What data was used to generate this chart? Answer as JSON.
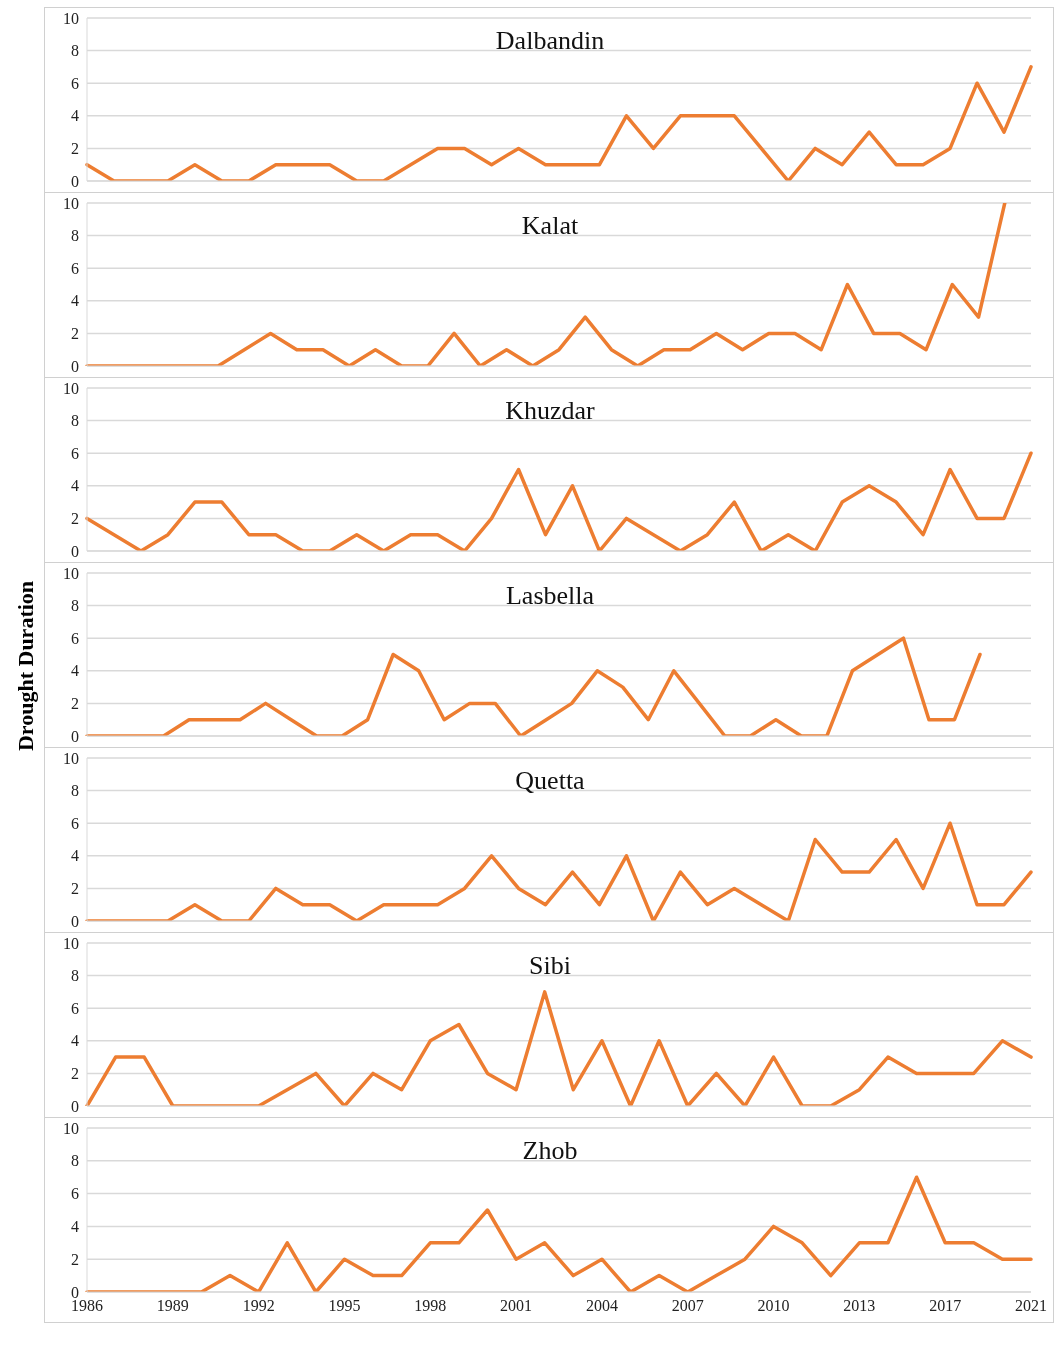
{
  "chart_data": [
    {
      "type": "line",
      "title": "Dalbandin",
      "categories": [
        null,
        null,
        null,
        null,
        null,
        null,
        null,
        null,
        null,
        null,
        null,
        null,
        null,
        null,
        null,
        null,
        null,
        null,
        null,
        null,
        null,
        null,
        null,
        null,
        null,
        null,
        null,
        null,
        null,
        null,
        null,
        null,
        null,
        null,
        null,
        null
      ],
      "series": [
        {
          "color": "#ed7d31",
          "values": [
            1,
            0,
            0,
            0,
            1,
            0,
            0,
            1,
            1,
            1,
            0,
            0,
            1,
            2,
            2,
            1,
            2,
            1,
            1,
            1,
            4,
            2,
            4,
            4,
            4,
            2,
            0,
            2,
            1,
            3,
            1,
            1,
            2,
            6,
            3,
            7
          ]
        }
      ],
      "ylim": [
        0,
        10
      ],
      "yticks": [
        0,
        2,
        4,
        6,
        8,
        10
      ],
      "grid": "y",
      "marker": "none",
      "line_style": "solid",
      "tick_labels": "y"
    },
    {
      "type": "line",
      "title": "Kalat",
      "categories": [
        null,
        null,
        null,
        null,
        null,
        null,
        null,
        null,
        null,
        null,
        null,
        null,
        null,
        null,
        null,
        null,
        null,
        null,
        null,
        null,
        null,
        null,
        null,
        null,
        null,
        null,
        null,
        null,
        null,
        null,
        null,
        null,
        null,
        null,
        null,
        null,
        null
      ],
      "series": [
        {
          "color": "#ed7d31",
          "values": [
            0,
            0,
            0,
            0,
            0,
            0,
            1,
            2,
            1,
            1,
            0,
            1,
            0,
            0,
            2,
            0,
            1,
            0,
            1,
            3,
            1,
            0,
            1,
            1,
            2,
            1,
            2,
            2,
            1,
            5,
            2,
            2,
            1,
            5,
            3,
            10,
            null
          ]
        }
      ],
      "ylim": [
        0,
        10
      ],
      "yticks": [
        0,
        2,
        4,
        6,
        8,
        10
      ],
      "grid": "y",
      "marker": "none",
      "line_style": "solid",
      "tick_labels": "y"
    },
    {
      "type": "line",
      "title": "Khuzdar",
      "categories": [
        null,
        null,
        null,
        null,
        null,
        null,
        null,
        null,
        null,
        null,
        null,
        null,
        null,
        null,
        null,
        null,
        null,
        null,
        null,
        null,
        null,
        null,
        null,
        null,
        null,
        null,
        null,
        null,
        null,
        null,
        null,
        null,
        null,
        null,
        null,
        null
      ],
      "series": [
        {
          "color": "#ed7d31",
          "values": [
            2,
            1,
            0,
            1,
            3,
            3,
            1,
            1,
            0,
            0,
            1,
            0,
            1,
            1,
            0,
            2,
            5,
            1,
            4,
            0,
            2,
            1,
            0,
            1,
            3,
            0,
            1,
            0,
            3,
            4,
            3,
            1,
            5,
            2,
            2,
            6
          ]
        }
      ],
      "ylim": [
        0,
        10
      ],
      "yticks": [
        0,
        2,
        4,
        6,
        8,
        10
      ],
      "grid": "y",
      "marker": "none",
      "line_style": "solid",
      "tick_labels": "y"
    },
    {
      "type": "line",
      "title": "Lasbella",
      "ylabel": "Drought Duration",
      "categories": [
        null,
        null,
        null,
        null,
        null,
        null,
        null,
        null,
        null,
        null,
        null,
        null,
        null,
        null,
        null,
        null,
        null,
        null,
        null,
        null,
        null,
        null,
        null,
        null,
        null,
        null,
        null,
        null,
        null,
        null,
        null,
        null,
        null,
        null,
        null,
        null,
        null,
        null
      ],
      "series": [
        {
          "color": "#ed7d31",
          "values": [
            0,
            0,
            0,
            0,
            1,
            1,
            1,
            2,
            1,
            0,
            0,
            1,
            5,
            4,
            1,
            2,
            2,
            0,
            1,
            2,
            4,
            3,
            1,
            4,
            2,
            0,
            0,
            1,
            0,
            0,
            4,
            5,
            6,
            1,
            1,
            5,
            null,
            null
          ]
        }
      ],
      "ylim": [
        0,
        10
      ],
      "yticks": [
        0,
        2,
        4,
        6,
        8,
        10
      ],
      "grid": "y",
      "marker": "none",
      "line_style": "solid",
      "tick_labels": "y"
    },
    {
      "type": "line",
      "title": "Quetta",
      "categories": [
        null,
        null,
        null,
        null,
        null,
        null,
        null,
        null,
        null,
        null,
        null,
        null,
        null,
        null,
        null,
        null,
        null,
        null,
        null,
        null,
        null,
        null,
        null,
        null,
        null,
        null,
        null,
        null,
        null,
        null,
        null,
        null,
        null,
        null,
        null,
        null
      ],
      "series": [
        {
          "color": "#ed7d31",
          "values": [
            0,
            0,
            0,
            0,
            1,
            0,
            0,
            2,
            1,
            1,
            0,
            1,
            1,
            1,
            2,
            4,
            2,
            1,
            3,
            1,
            4,
            0,
            3,
            1,
            2,
            1,
            0,
            5,
            3,
            3,
            5,
            2,
            6,
            1,
            1,
            3
          ]
        }
      ],
      "ylim": [
        0,
        10
      ],
      "yticks": [
        0,
        2,
        4,
        6,
        8,
        10
      ],
      "grid": "y",
      "marker": "none",
      "line_style": "solid",
      "tick_labels": "y"
    },
    {
      "type": "line",
      "title": "Sibi",
      "categories": [
        null,
        null,
        null,
        null,
        null,
        null,
        null,
        null,
        null,
        null,
        null,
        null,
        null,
        null,
        null,
        null,
        null,
        null,
        null,
        null,
        null,
        null,
        null,
        null,
        null,
        null,
        null,
        null,
        null,
        null,
        null,
        null,
        null,
        null
      ],
      "series": [
        {
          "color": "#ed7d31",
          "values": [
            0,
            3,
            3,
            0,
            0,
            0,
            0,
            1,
            2,
            0,
            2,
            1,
            4,
            5,
            2,
            1,
            7,
            1,
            4,
            0,
            4,
            0,
            2,
            0,
            3,
            0,
            0,
            1,
            3,
            2,
            2,
            2,
            4,
            3
          ]
        }
      ],
      "ylim": [
        0,
        10
      ],
      "yticks": [
        0,
        2,
        4,
        6,
        8,
        10
      ],
      "grid": "y",
      "marker": "none",
      "line_style": "solid",
      "tick_labels": "y"
    },
    {
      "type": "line",
      "title": "Zhob",
      "categories": [
        "1986",
        null,
        null,
        "1989",
        null,
        null,
        "1992",
        null,
        null,
        "1995",
        null,
        null,
        "1998",
        null,
        null,
        "2001",
        null,
        null,
        "2004",
        null,
        null,
        "2007",
        null,
        null,
        "2010",
        null,
        null,
        "2013",
        null,
        null,
        "2017",
        null,
        null,
        "2021"
      ],
      "series": [
        {
          "color": "#ed7d31",
          "values": [
            0,
            0,
            0,
            0,
            0,
            1,
            0,
            3,
            0,
            2,
            1,
            1,
            3,
            3,
            5,
            2,
            3,
            1,
            2,
            0,
            1,
            0,
            1,
            2,
            4,
            3,
            1,
            3,
            3,
            7,
            3,
            3,
            2,
            2
          ]
        }
      ],
      "ylim": [
        0,
        10
      ],
      "yticks": [
        0,
        2,
        4,
        6,
        8,
        10
      ],
      "grid": "y",
      "marker": "none",
      "line_style": "solid"
    }
  ]
}
